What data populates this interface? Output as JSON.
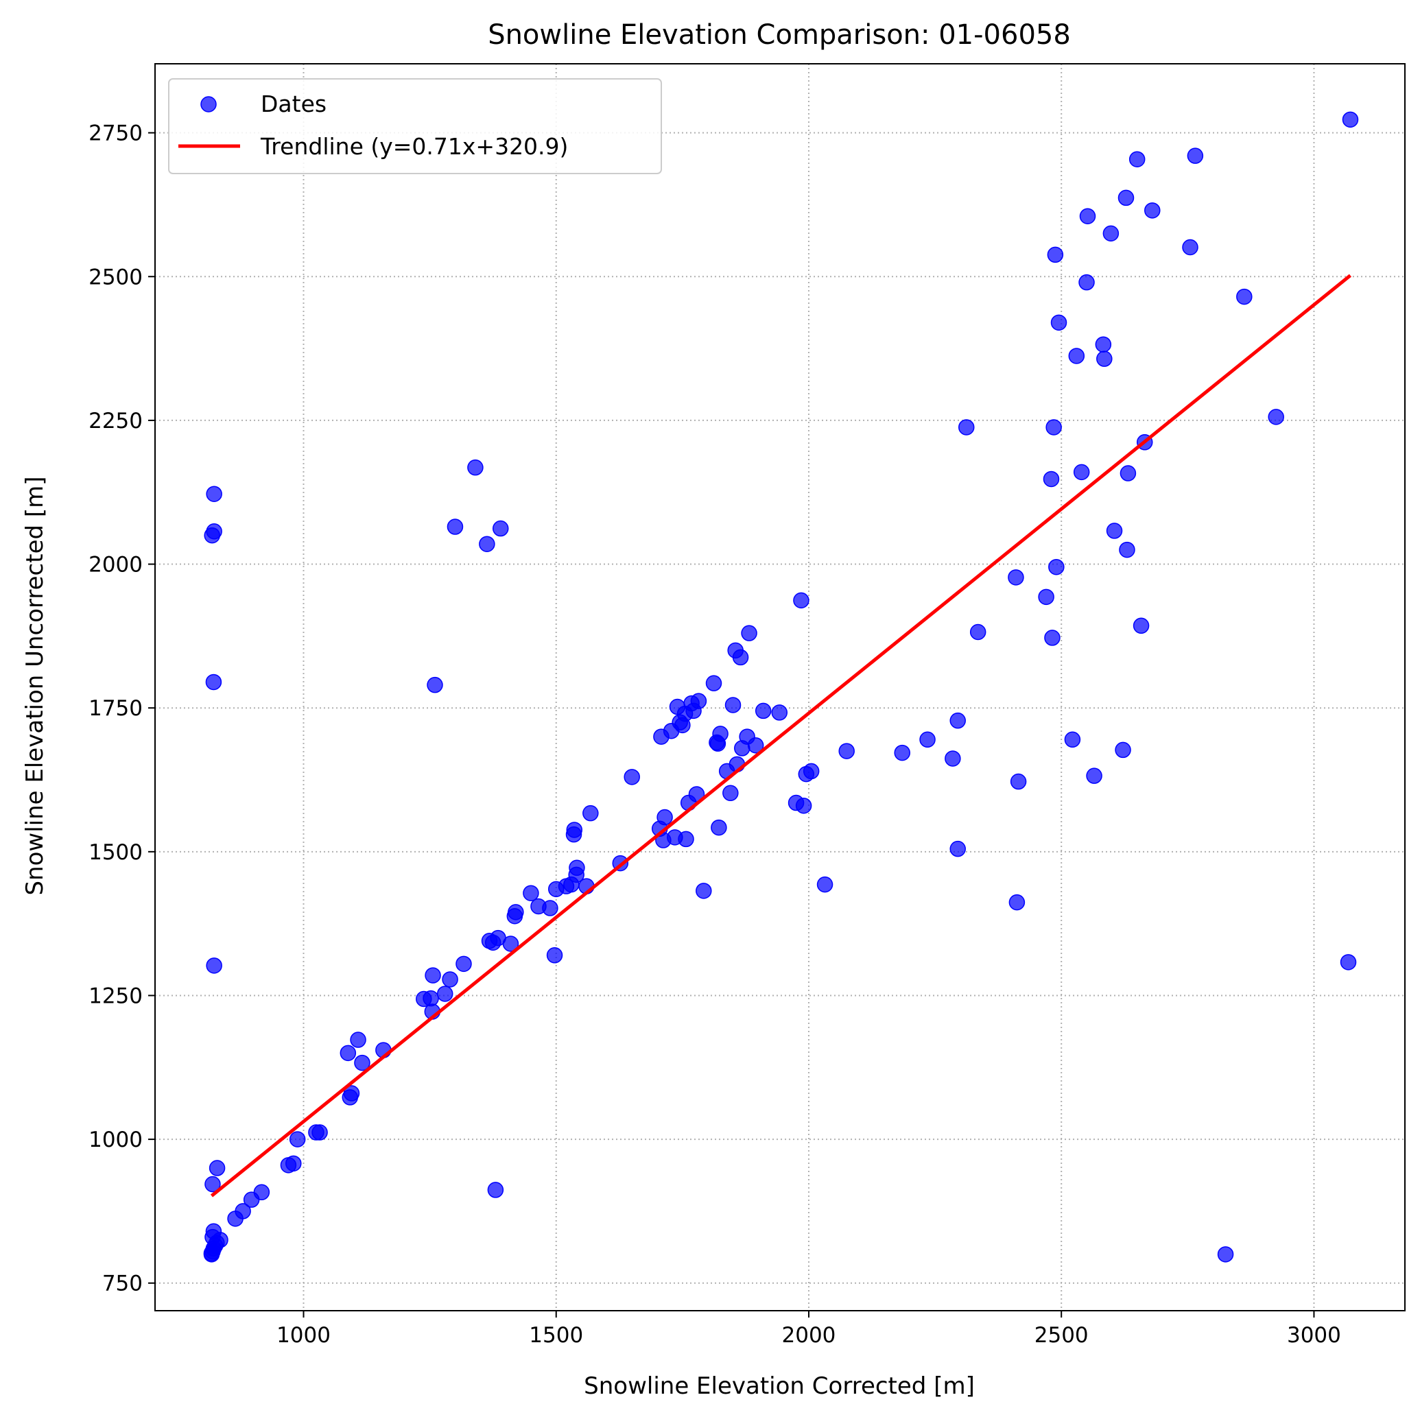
{
  "chart_data": {
    "type": "scatter",
    "title": "Snowline Elevation Comparison: 01-06058",
    "xlabel": "Snowline Elevation Corrected [m]",
    "ylabel": "Snowline Elevation Uncorrected [m]",
    "xlim": [
      706,
      3180
    ],
    "ylim": [
      702,
      2870
    ],
    "xticks": [
      1000,
      1500,
      2000,
      2500,
      3000
    ],
    "yticks": [
      750,
      1000,
      1250,
      1500,
      1750,
      2000,
      2250,
      2500,
      2750
    ],
    "grid": true,
    "legend": {
      "placement": "top-left",
      "entries": [
        "Dates",
        "Trendline (y=0.71x+320.9)"
      ]
    },
    "colors": {
      "points": "#0000ff",
      "trendline": "#ff0000",
      "grid": "#b0b0b0"
    },
    "series": [
      {
        "name": "Dates",
        "type": "scatter",
        "points": [
          [
            818,
            800
          ],
          [
            818,
            802
          ],
          [
            820,
            805
          ],
          [
            822,
            810
          ],
          [
            825,
            815
          ],
          [
            828,
            820
          ],
          [
            835,
            825
          ],
          [
            820,
            830
          ],
          [
            822,
            840
          ],
          [
            820,
            922
          ],
          [
            829,
            950
          ],
          [
            823,
            1302
          ],
          [
            822,
            1795
          ],
          [
            819,
            2050
          ],
          [
            823,
            2057
          ],
          [
            823,
            2122
          ],
          [
            865,
            862
          ],
          [
            880,
            875
          ],
          [
            897,
            895
          ],
          [
            917,
            908
          ],
          [
            970,
            955
          ],
          [
            980,
            958
          ],
          [
            988,
            1000
          ],
          [
            1025,
            1012
          ],
          [
            1032,
            1012
          ],
          [
            1088,
            1150
          ],
          [
            1092,
            1073
          ],
          [
            1095,
            1080
          ],
          [
            1108,
            1173
          ],
          [
            1116,
            1133
          ],
          [
            1158,
            1155
          ],
          [
            1238,
            1244
          ],
          [
            1252,
            1245
          ],
          [
            1255,
            1222
          ],
          [
            1256,
            1285
          ],
          [
            1260,
            1790
          ],
          [
            1280,
            1253
          ],
          [
            1290,
            1278
          ],
          [
            1317,
            1305
          ],
          [
            1300,
            2065
          ],
          [
            1340,
            2168
          ],
          [
            1363,
            2035
          ],
          [
            1368,
            1345
          ],
          [
            1375,
            1342
          ],
          [
            1385,
            1350
          ],
          [
            1380,
            912
          ],
          [
            1390,
            2062
          ],
          [
            1410,
            1340
          ],
          [
            1418,
            1388
          ],
          [
            1420,
            1395
          ],
          [
            1450,
            1428
          ],
          [
            1465,
            1405
          ],
          [
            1488,
            1402
          ],
          [
            1497,
            1320
          ],
          [
            1500,
            1435
          ],
          [
            1520,
            1440
          ],
          [
            1530,
            1443
          ],
          [
            1535,
            1530
          ],
          [
            1536,
            1538
          ],
          [
            1540,
            1460
          ],
          [
            1541,
            1472
          ],
          [
            1560,
            1440
          ],
          [
            1568,
            1567
          ],
          [
            1627,
            1480
          ],
          [
            1650,
            1630
          ],
          [
            1705,
            1540
          ],
          [
            1708,
            1700
          ],
          [
            1712,
            1520
          ],
          [
            1715,
            1560
          ],
          [
            1728,
            1710
          ],
          [
            1735,
            1525
          ],
          [
            1740,
            1752
          ],
          [
            1745,
            1725
          ],
          [
            1750,
            1720
          ],
          [
            1755,
            1740
          ],
          [
            1757,
            1522
          ],
          [
            1762,
            1585
          ],
          [
            1768,
            1758
          ],
          [
            1772,
            1745
          ],
          [
            1778,
            1600
          ],
          [
            1782,
            1762
          ],
          [
            1792,
            1432
          ],
          [
            1812,
            1793
          ],
          [
            1818,
            1690
          ],
          [
            1820,
            1688
          ],
          [
            1822,
            1542
          ],
          [
            1825,
            1705
          ],
          [
            1838,
            1640
          ],
          [
            1845,
            1602
          ],
          [
            1850,
            1755
          ],
          [
            1855,
            1850
          ],
          [
            1858,
            1652
          ],
          [
            1865,
            1838
          ],
          [
            1868,
            1680
          ],
          [
            1878,
            1700
          ],
          [
            1882,
            1880
          ],
          [
            1895,
            1685
          ],
          [
            1910,
            1745
          ],
          [
            1942,
            1742
          ],
          [
            1975,
            1585
          ],
          [
            1985,
            1937
          ],
          [
            1990,
            1580
          ],
          [
            1995,
            1635
          ],
          [
            2005,
            1640
          ],
          [
            2032,
            1443
          ],
          [
            2075,
            1675
          ],
          [
            2185,
            1672
          ],
          [
            2235,
            1695
          ],
          [
            2285,
            1662
          ],
          [
            2295,
            1728
          ],
          [
            2295,
            1505
          ],
          [
            2312,
            2238
          ],
          [
            2335,
            1882
          ],
          [
            2410,
            1977
          ],
          [
            2412,
            1412
          ],
          [
            2415,
            1622
          ],
          [
            2470,
            1943
          ],
          [
            2480,
            2148
          ],
          [
            2482,
            1872
          ],
          [
            2485,
            2238
          ],
          [
            2488,
            2538
          ],
          [
            2490,
            1995
          ],
          [
            2495,
            2420
          ],
          [
            2522,
            1695
          ],
          [
            2530,
            2362
          ],
          [
            2540,
            2160
          ],
          [
            2550,
            2490
          ],
          [
            2552,
            2605
          ],
          [
            2565,
            1632
          ],
          [
            2583,
            2382
          ],
          [
            2585,
            2357
          ],
          [
            2598,
            2575
          ],
          [
            2605,
            2058
          ],
          [
            2622,
            1677
          ],
          [
            2628,
            2637
          ],
          [
            2630,
            2025
          ],
          [
            2632,
            2158
          ],
          [
            2650,
            2704
          ],
          [
            2658,
            1893
          ],
          [
            2665,
            2212
          ],
          [
            2680,
            2615
          ],
          [
            2755,
            2551
          ],
          [
            2765,
            2710
          ],
          [
            2825,
            800
          ],
          [
            2862,
            2465
          ],
          [
            2925,
            2256
          ],
          [
            3068,
            1308
          ],
          [
            3072,
            2773
          ]
        ]
      },
      {
        "name": "Trendline (y=0.71x+320.9)",
        "type": "line",
        "points": [
          [
            818,
            901.7
          ],
          [
            3072,
            2502
          ]
        ]
      }
    ]
  }
}
